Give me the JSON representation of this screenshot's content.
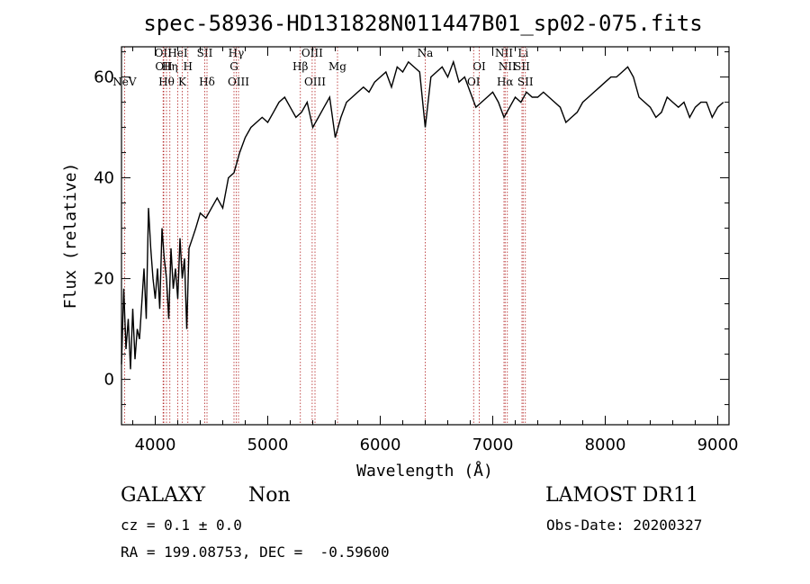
{
  "chart_data": {
    "type": "line",
    "title": "spec-58936-HD131828N011447B01_sp02-075.fits",
    "xlabel": "Wavelength (Å)",
    "ylabel": "Flux (relative)",
    "xlim": [
      3700,
      9100
    ],
    "ylim": [
      -9,
      66
    ],
    "x_ticks": [
      4000,
      5000,
      6000,
      7000,
      8000,
      9000
    ],
    "y_ticks": [
      0,
      20,
      40,
      60
    ],
    "series": [
      {
        "x": [
          3700,
          3720,
          3740,
          3760,
          3780,
          3800,
          3820,
          3840,
          3860,
          3880,
          3900,
          3920,
          3940,
          3960,
          3980,
          4000,
          4020,
          4040,
          4060,
          4080,
          4100,
          4120,
          4140,
          4160,
          4180,
          4200,
          4220,
          4240,
          4260,
          4280,
          4300,
          4330,
          4360,
          4400,
          4450,
          4500,
          4550,
          4600,
          4650,
          4700,
          4750,
          4800,
          4850,
          4900,
          4950,
          5000,
          5050,
          5100,
          5150,
          5200,
          5250,
          5300,
          5350,
          5400,
          5450,
          5500,
          5550,
          5600,
          5650,
          5700,
          5750,
          5800,
          5850,
          5900,
          5950,
          6000,
          6050,
          6100,
          6150,
          6200,
          6250,
          6300,
          6350,
          6400,
          6450,
          6500,
          6550,
          6600,
          6650,
          6700,
          6750,
          6800,
          6850,
          6900,
          6950,
          7000,
          7050,
          7100,
          7150,
          7200,
          7250,
          7300,
          7350,
          7400,
          7450,
          7500,
          7550,
          7600,
          7650,
          7700,
          7750,
          7800,
          7850,
          7900,
          7950,
          8000,
          8050,
          8100,
          8150,
          8200,
          8250,
          8300,
          8350,
          8400,
          8450,
          8500,
          8550,
          8600,
          8650,
          8700,
          8750,
          8800,
          8850,
          8900,
          8950,
          9000,
          9050
        ],
        "values": [
          3,
          18,
          6,
          12,
          2,
          14,
          4,
          10,
          8,
          15,
          22,
          12,
          34,
          26,
          20,
          16,
          22,
          14,
          30,
          24,
          20,
          12,
          26,
          18,
          22,
          16,
          28,
          20,
          24,
          10,
          26,
          28,
          30,
          33,
          32,
          34,
          36,
          34,
          40,
          41,
          45,
          48,
          50,
          51,
          52,
          51,
          53,
          55,
          56,
          54,
          52,
          53,
          55,
          50,
          52,
          54,
          56,
          48,
          52,
          55,
          56,
          57,
          58,
          57,
          59,
          60,
          61,
          58,
          62,
          61,
          63,
          62,
          61,
          50,
          60,
          61,
          62,
          60,
          63,
          59,
          60,
          57,
          54,
          55,
          56,
          57,
          55,
          52,
          54,
          56,
          55,
          57,
          56,
          56,
          57,
          56,
          55,
          54,
          51,
          52,
          53,
          55,
          56,
          57,
          58,
          59,
          60,
          60,
          61,
          62,
          60,
          56,
          55,
          54,
          52,
          53,
          56,
          55,
          54,
          55,
          52,
          54,
          55,
          55,
          52,
          54,
          55
        ]
      }
    ],
    "emission_lines": [
      {
        "name": "NeV",
        "wave": 3727,
        "row": 3
      },
      {
        "name": "OII",
        "wave": 4070,
        "row": 1
      },
      {
        "name": "OII",
        "wave": 4076,
        "row": 2
      },
      {
        "name": "Hθ",
        "wave": 4100,
        "row": 3
      },
      {
        "name": "Hη",
        "wave": 4130,
        "row": 2
      },
      {
        "name": "HeI",
        "wave": 4200,
        "row": 1
      },
      {
        "name": "K",
        "wave": 4240,
        "row": 3
      },
      {
        "name": "H",
        "wave": 4290,
        "row": 2
      },
      {
        "name": "SII",
        "wave": 4440,
        "row": 1
      },
      {
        "name": "Hδ",
        "wave": 4460,
        "row": 3
      },
      {
        "name": "Hγ",
        "wave": 4720,
        "row": 1
      },
      {
        "name": "G",
        "wave": 4700,
        "row": 2
      },
      {
        "name": "OIII",
        "wave": 4740,
        "row": 3
      },
      {
        "name": "Hβ",
        "wave": 5290,
        "row": 2
      },
      {
        "name": "OIII",
        "wave": 5395,
        "row": 1
      },
      {
        "name": "OIII",
        "wave": 5420,
        "row": 3
      },
      {
        "name": "Mg",
        "wave": 5620,
        "row": 2
      },
      {
        "name": "Na",
        "wave": 6400,
        "row": 1
      },
      {
        "name": "OI",
        "wave": 6880,
        "row": 2
      },
      {
        "name": "OI",
        "wave": 6830,
        "row": 3
      },
      {
        "name": "NII",
        "wave": 7100,
        "row": 1
      },
      {
        "name": "NII",
        "wave": 7130,
        "row": 2
      },
      {
        "name": "Hα",
        "wave": 7110,
        "row": 3
      },
      {
        "name": "Li",
        "wave": 7270,
        "row": 1
      },
      {
        "name": "SII",
        "wave": 7260,
        "row": 2
      },
      {
        "name": "SII",
        "wave": 7290,
        "row": 3
      }
    ]
  },
  "info": {
    "class": "GALAXY",
    "subclass": "Non",
    "survey": "LAMOST DR11",
    "cz": "cz = 0.1 ± 0.0",
    "obs_date": "Obs-Date: 20200327",
    "radec": "RA = 199.08753, DEC =  -0.59600"
  }
}
